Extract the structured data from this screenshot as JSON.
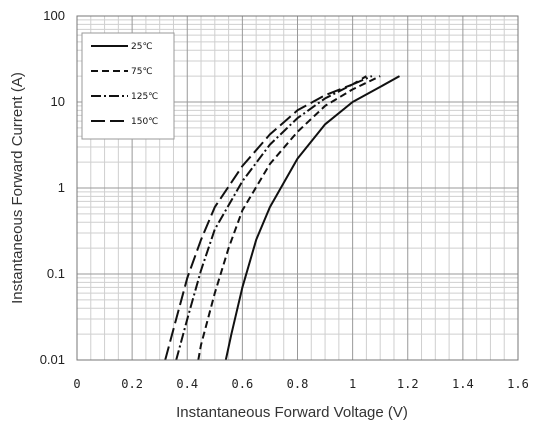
{
  "chart_data": {
    "type": "line",
    "title": "",
    "xlabel": "Instantaneous Forward Voltage (V)",
    "ylabel": "Instantaneous Forward Current (A)",
    "x_scale": "linear",
    "y_scale": "log",
    "xlim": [
      0,
      1.6
    ],
    "ylim": [
      0.01,
      100
    ],
    "xticks": [
      "0",
      "0.2",
      "0.4",
      "0.6",
      "0.8",
      "1",
      "1.2",
      "1.4",
      "1.6"
    ],
    "yticks": [
      "0.01",
      "0.1",
      "1",
      "10",
      "100"
    ],
    "grid": true,
    "legend_position": "top-left",
    "series": [
      {
        "name": "25℃",
        "dash": "solid",
        "x": [
          0.54,
          0.56,
          0.6,
          0.65,
          0.7,
          0.8,
          0.9,
          1.0,
          1.1,
          1.17
        ],
        "y": [
          0.01,
          0.02,
          0.07,
          0.25,
          0.6,
          2.2,
          5.5,
          10,
          15,
          20
        ]
      },
      {
        "name": "75℃",
        "dash": "dash",
        "x": [
          0.44,
          0.45,
          0.5,
          0.55,
          0.6,
          0.7,
          0.8,
          0.9,
          1.0,
          1.1
        ],
        "y": [
          0.01,
          0.015,
          0.06,
          0.2,
          0.55,
          1.9,
          4.5,
          9,
          14,
          20
        ]
      },
      {
        "name": "125℃",
        "dash": "dashdot",
        "x": [
          0.36,
          0.4,
          0.45,
          0.5,
          0.6,
          0.7,
          0.8,
          0.9,
          1.0,
          1.07
        ],
        "y": [
          0.01,
          0.03,
          0.11,
          0.33,
          1.2,
          3.2,
          6.5,
          11,
          16,
          20
        ]
      },
      {
        "name": "150℃",
        "dash": "longdash",
        "x": [
          0.32,
          0.36,
          0.4,
          0.45,
          0.5,
          0.6,
          0.7,
          0.8,
          0.9,
          1.0,
          1.05
        ],
        "y": [
          0.01,
          0.03,
          0.09,
          0.25,
          0.6,
          1.8,
          4.2,
          8,
          12,
          16,
          20
        ]
      }
    ]
  }
}
